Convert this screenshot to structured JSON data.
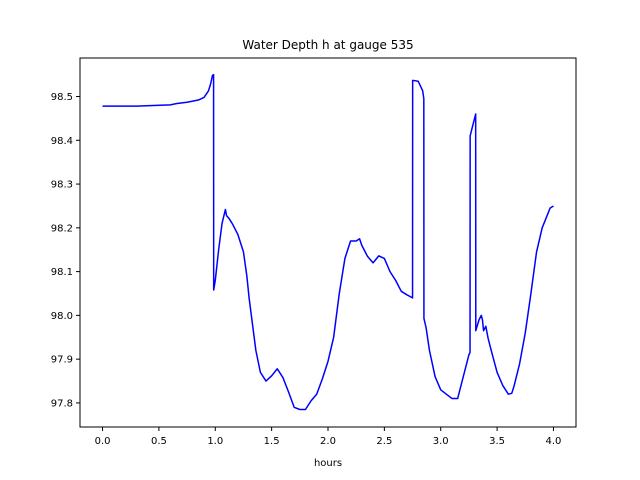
{
  "chart_data": {
    "type": "line",
    "title": "Water Depth h at gauge 535",
    "xlabel": "hours",
    "ylabel": "",
    "xlim": [
      -0.2,
      4.2
    ],
    "ylim": [
      97.745,
      98.588
    ],
    "grid": false,
    "legend": "none",
    "xticks": [
      0.0,
      0.5,
      1.0,
      1.5,
      2.0,
      2.5,
      3.0,
      3.5,
      4.0
    ],
    "xtick_labels": [
      "0.0",
      "0.5",
      "1.0",
      "1.5",
      "2.0",
      "2.5",
      "3.0",
      "3.5",
      "4.0"
    ],
    "yticks": [
      97.8,
      97.9,
      98.0,
      98.1,
      98.2,
      98.3,
      98.4,
      98.5
    ],
    "ytick_labels": [
      "97.8",
      "97.9",
      "98.0",
      "98.1",
      "98.2",
      "98.3",
      "98.4",
      "98.5"
    ],
    "color": "#0000ff",
    "series": [
      {
        "x": [
          0.0,
          0.3,
          0.6,
          0.66,
          0.75,
          0.85,
          0.9,
          0.94,
          0.96,
          0.975,
          0.985,
          0.986,
          1.0,
          1.03,
          1.06,
          1.09,
          1.1,
          1.12,
          1.15,
          1.2,
          1.25,
          1.28,
          1.3,
          1.33,
          1.36,
          1.4,
          1.45,
          1.5,
          1.55,
          1.6,
          1.65,
          1.7,
          1.75,
          1.8,
          1.85,
          1.9,
          1.95,
          2.0,
          2.05,
          2.08,
          2.1,
          2.15,
          2.2,
          2.25,
          2.28,
          2.3,
          2.35,
          2.4,
          2.45,
          2.5,
          2.55,
          2.6,
          2.65,
          2.7,
          2.75,
          2.751,
          2.8,
          2.84,
          2.85,
          2.851,
          2.87,
          2.9,
          2.95,
          3.0,
          3.05,
          3.1,
          3.15,
          3.2,
          3.25,
          3.26,
          3.261,
          3.29,
          3.31,
          3.311,
          3.34,
          3.36,
          3.37,
          3.38,
          3.39,
          3.4,
          3.42,
          3.45,
          3.5,
          3.55,
          3.6,
          3.63,
          3.65,
          3.7,
          3.75,
          3.8,
          3.85,
          3.9,
          3.95,
          3.97,
          4.0
        ],
        "y": [
          98.478,
          98.478,
          98.481,
          98.484,
          98.487,
          98.492,
          98.498,
          98.513,
          98.53,
          98.548,
          98.55,
          98.058,
          98.08,
          98.15,
          98.21,
          98.242,
          98.228,
          98.222,
          98.21,
          98.185,
          98.145,
          98.09,
          98.04,
          97.98,
          97.92,
          97.87,
          97.85,
          97.862,
          97.878,
          97.858,
          97.825,
          97.79,
          97.785,
          97.785,
          97.805,
          97.82,
          97.855,
          97.895,
          97.95,
          98.01,
          98.05,
          98.13,
          98.17,
          98.17,
          98.175,
          98.16,
          98.135,
          98.12,
          98.136,
          98.13,
          98.1,
          98.08,
          98.055,
          98.047,
          98.04,
          98.537,
          98.535,
          98.513,
          98.495,
          97.993,
          97.972,
          97.92,
          97.86,
          97.83,
          97.82,
          97.81,
          97.81,
          97.86,
          97.91,
          97.915,
          98.41,
          98.44,
          98.46,
          97.965,
          97.99,
          98.0,
          97.99,
          97.965,
          97.97,
          97.975,
          97.948,
          97.918,
          97.87,
          97.84,
          97.82,
          97.822,
          97.838,
          97.89,
          97.96,
          98.05,
          98.145,
          98.2,
          98.232,
          98.245,
          98.25
        ]
      }
    ]
  }
}
